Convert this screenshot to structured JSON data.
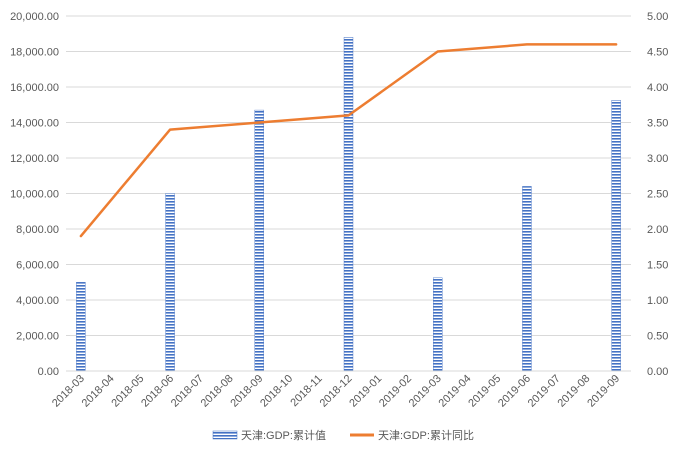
{
  "chart_data": {
    "type": "bar",
    "categories": [
      "2018-03",
      "2018-04",
      "2018-05",
      "2018-06",
      "2018-07",
      "2018-08",
      "2018-09",
      "2018-10",
      "2018-11",
      "2018-12",
      "2019-01",
      "2019-02",
      "2019-03",
      "2019-04",
      "2019-05",
      "2019-06",
      "2019-07",
      "2019-08",
      "2019-09"
    ],
    "series": [
      {
        "name": "天津:GDP:累计值",
        "type": "bar",
        "axis": "left",
        "color": "#4472c4",
        "values": [
          5000,
          null,
          null,
          10000,
          null,
          null,
          14700,
          null,
          null,
          18800,
          null,
          null,
          5250,
          null,
          null,
          10400,
          null,
          null,
          15250
        ]
      },
      {
        "name": "天津:GDP:累计同比",
        "type": "line",
        "axis": "right",
        "color": "#ed7d31",
        "values": [
          1.9,
          null,
          null,
          3.4,
          null,
          null,
          3.5,
          null,
          null,
          3.6,
          null,
          null,
          4.5,
          null,
          null,
          4.6,
          null,
          null,
          4.6
        ]
      }
    ],
    "y_left": {
      "ylim": [
        0,
        20000
      ],
      "ticks": [
        "0.00",
        "2,000.00",
        "4,000.00",
        "6,000.00",
        "8,000.00",
        "10,000.00",
        "12,000.00",
        "14,000.00",
        "16,000.00",
        "18,000.00",
        "20,000.00"
      ]
    },
    "y_right": {
      "ylim": [
        0,
        5
      ],
      "ticks": [
        "0.00",
        "0.50",
        "1.00",
        "1.50",
        "2.00",
        "2.50",
        "3.00",
        "3.50",
        "4.00",
        "4.50",
        "5.00"
      ]
    },
    "grid": true,
    "legend": "bottom",
    "title": "",
    "xlabel": "",
    "ylabel": ""
  }
}
